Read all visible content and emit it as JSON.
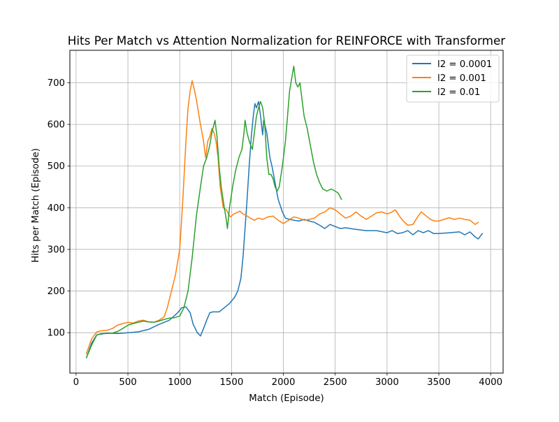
{
  "chart_data": {
    "type": "line",
    "title": "Hits Per Match vs Attention Normalization for REINFORCE with Transformer",
    "xlabel": "Match (Episode)",
    "ylabel": "Hits per Match (Episode)",
    "xlim": [
      -60,
      4120
    ],
    "ylim": [
      3,
      778
    ],
    "xticks": [
      0,
      500,
      1000,
      1500,
      2000,
      2500,
      3000,
      3500,
      4000
    ],
    "yticks": [
      100,
      200,
      300,
      400,
      500,
      600,
      700
    ],
    "grid": true,
    "legend_position": "upper right",
    "series": [
      {
        "name": "l2 = 0.0001",
        "color": "#1f77b4",
        "points": [
          [
            100,
            40
          ],
          [
            150,
            75
          ],
          [
            200,
            95
          ],
          [
            300,
            99
          ],
          [
            400,
            98
          ],
          [
            500,
            100
          ],
          [
            600,
            102
          ],
          [
            700,
            108
          ],
          [
            800,
            120
          ],
          [
            900,
            130
          ],
          [
            980,
            148
          ],
          [
            1020,
            160
          ],
          [
            1060,
            162
          ],
          [
            1100,
            148
          ],
          [
            1130,
            120
          ],
          [
            1170,
            100
          ],
          [
            1200,
            92
          ],
          [
            1230,
            110
          ],
          [
            1260,
            130
          ],
          [
            1290,
            148
          ],
          [
            1320,
            150
          ],
          [
            1380,
            150
          ],
          [
            1430,
            160
          ],
          [
            1480,
            170
          ],
          [
            1530,
            185
          ],
          [
            1560,
            200
          ],
          [
            1590,
            230
          ],
          [
            1610,
            280
          ],
          [
            1630,
            350
          ],
          [
            1650,
            420
          ],
          [
            1670,
            500
          ],
          [
            1690,
            570
          ],
          [
            1710,
            620
          ],
          [
            1725,
            650
          ],
          [
            1740,
            640
          ],
          [
            1760,
            655
          ],
          [
            1780,
            620
          ],
          [
            1800,
            575
          ],
          [
            1810,
            610
          ],
          [
            1840,
            580
          ],
          [
            1870,
            520
          ],
          [
            1890,
            500
          ],
          [
            1920,
            460
          ],
          [
            1950,
            420
          ],
          [
            1990,
            390
          ],
          [
            2020,
            375
          ],
          [
            2060,
            372
          ],
          [
            2100,
            370
          ],
          [
            2150,
            368
          ],
          [
            2200,
            372
          ],
          [
            2250,
            368
          ],
          [
            2300,
            365
          ],
          [
            2350,
            358
          ],
          [
            2400,
            350
          ],
          [
            2450,
            360
          ],
          [
            2500,
            355
          ],
          [
            2550,
            350
          ],
          [
            2600,
            352
          ],
          [
            2700,
            348
          ],
          [
            2800,
            345
          ],
          [
            2900,
            345
          ],
          [
            3000,
            340
          ],
          [
            3050,
            345
          ],
          [
            3100,
            338
          ],
          [
            3150,
            340
          ],
          [
            3200,
            345
          ],
          [
            3250,
            335
          ],
          [
            3300,
            345
          ],
          [
            3350,
            340
          ],
          [
            3400,
            345
          ],
          [
            3450,
            338
          ],
          [
            3500,
            338
          ],
          [
            3600,
            340
          ],
          [
            3700,
            342
          ],
          [
            3750,
            335
          ],
          [
            3800,
            342
          ],
          [
            3850,
            330
          ],
          [
            3880,
            325
          ],
          [
            3920,
            338
          ]
        ]
      },
      {
        "name": "l2 = 0.001",
        "color": "#ff7f0e",
        "points": [
          [
            100,
            50
          ],
          [
            150,
            85
          ],
          [
            200,
            102
          ],
          [
            250,
            105
          ],
          [
            300,
            106
          ],
          [
            350,
            110
          ],
          [
            400,
            118
          ],
          [
            450,
            122
          ],
          [
            500,
            125
          ],
          [
            550,
            123
          ],
          [
            600,
            128
          ],
          [
            650,
            130
          ],
          [
            700,
            126
          ],
          [
            750,
            125
          ],
          [
            800,
            130
          ],
          [
            850,
            138
          ],
          [
            880,
            160
          ],
          [
            920,
            200
          ],
          [
            960,
            240
          ],
          [
            1000,
            300
          ],
          [
            1030,
            420
          ],
          [
            1060,
            560
          ],
          [
            1080,
            640
          ],
          [
            1100,
            680
          ],
          [
            1120,
            705
          ],
          [
            1140,
            685
          ],
          [
            1160,
            660
          ],
          [
            1180,
            630
          ],
          [
            1200,
            600
          ],
          [
            1230,
            560
          ],
          [
            1250,
            520
          ],
          [
            1270,
            560
          ],
          [
            1290,
            570
          ],
          [
            1310,
            590
          ],
          [
            1330,
            580
          ],
          [
            1350,
            560
          ],
          [
            1370,
            520
          ],
          [
            1390,
            450
          ],
          [
            1420,
            400
          ],
          [
            1450,
            395
          ],
          [
            1470,
            385
          ],
          [
            1490,
            378
          ],
          [
            1520,
            385
          ],
          [
            1550,
            388
          ],
          [
            1580,
            392
          ],
          [
            1610,
            385
          ],
          [
            1640,
            382
          ],
          [
            1680,
            375
          ],
          [
            1720,
            370
          ],
          [
            1760,
            375
          ],
          [
            1800,
            372
          ],
          [
            1850,
            378
          ],
          [
            1900,
            380
          ],
          [
            1950,
            370
          ],
          [
            2000,
            362
          ],
          [
            2050,
            370
          ],
          [
            2100,
            378
          ],
          [
            2150,
            375
          ],
          [
            2200,
            370
          ],
          [
            2250,
            372
          ],
          [
            2300,
            375
          ],
          [
            2350,
            385
          ],
          [
            2400,
            390
          ],
          [
            2450,
            400
          ],
          [
            2500,
            395
          ],
          [
            2550,
            385
          ],
          [
            2600,
            375
          ],
          [
            2650,
            380
          ],
          [
            2700,
            390
          ],
          [
            2750,
            380
          ],
          [
            2800,
            372
          ],
          [
            2850,
            380
          ],
          [
            2900,
            388
          ],
          [
            2950,
            390
          ],
          [
            3000,
            385
          ],
          [
            3050,
            390
          ],
          [
            3080,
            395
          ],
          [
            3120,
            380
          ],
          [
            3150,
            370
          ],
          [
            3200,
            358
          ],
          [
            3250,
            360
          ],
          [
            3300,
            380
          ],
          [
            3330,
            390
          ],
          [
            3380,
            380
          ],
          [
            3420,
            372
          ],
          [
            3460,
            368
          ],
          [
            3500,
            368
          ],
          [
            3550,
            372
          ],
          [
            3600,
            376
          ],
          [
            3650,
            372
          ],
          [
            3700,
            375
          ],
          [
            3750,
            372
          ],
          [
            3800,
            370
          ],
          [
            3850,
            360
          ],
          [
            3880,
            365
          ]
        ]
      },
      {
        "name": "l2 = 0.01",
        "color": "#2ca02c",
        "points": [
          [
            100,
            40
          ],
          [
            150,
            70
          ],
          [
            200,
            95
          ],
          [
            250,
            98
          ],
          [
            300,
            98
          ],
          [
            350,
            99
          ],
          [
            400,
            103
          ],
          [
            450,
            110
          ],
          [
            500,
            118
          ],
          [
            550,
            122
          ],
          [
            600,
            125
          ],
          [
            650,
            128
          ],
          [
            700,
            126
          ],
          [
            750,
            125
          ],
          [
            800,
            128
          ],
          [
            850,
            132
          ],
          [
            900,
            135
          ],
          [
            950,
            136
          ],
          [
            1000,
            140
          ],
          [
            1040,
            160
          ],
          [
            1080,
            200
          ],
          [
            1120,
            280
          ],
          [
            1160,
            380
          ],
          [
            1200,
            450
          ],
          [
            1230,
            500
          ],
          [
            1260,
            520
          ],
          [
            1290,
            550
          ],
          [
            1310,
            580
          ],
          [
            1340,
            610
          ],
          [
            1360,
            570
          ],
          [
            1380,
            500
          ],
          [
            1400,
            450
          ],
          [
            1430,
            400
          ],
          [
            1450,
            370
          ],
          [
            1460,
            350
          ],
          [
            1480,
            400
          ],
          [
            1510,
            450
          ],
          [
            1540,
            490
          ],
          [
            1570,
            520
          ],
          [
            1600,
            540
          ],
          [
            1620,
            580
          ],
          [
            1630,
            610
          ],
          [
            1650,
            580
          ],
          [
            1670,
            560
          ],
          [
            1700,
            540
          ],
          [
            1720,
            580
          ],
          [
            1740,
            620
          ],
          [
            1760,
            640
          ],
          [
            1780,
            655
          ],
          [
            1800,
            640
          ],
          [
            1820,
            600
          ],
          [
            1840,
            520
          ],
          [
            1860,
            480
          ],
          [
            1880,
            480
          ],
          [
            1900,
            470
          ],
          [
            1920,
            450
          ],
          [
            1940,
            440
          ],
          [
            1960,
            450
          ],
          [
            1990,
            500
          ],
          [
            2020,
            560
          ],
          [
            2040,
            620
          ],
          [
            2060,
            680
          ],
          [
            2080,
            710
          ],
          [
            2100,
            740
          ],
          [
            2120,
            700
          ],
          [
            2140,
            690
          ],
          [
            2160,
            700
          ],
          [
            2180,
            660
          ],
          [
            2200,
            620
          ],
          [
            2230,
            590
          ],
          [
            2260,
            550
          ],
          [
            2290,
            510
          ],
          [
            2320,
            480
          ],
          [
            2350,
            460
          ],
          [
            2380,
            445
          ],
          [
            2420,
            440
          ],
          [
            2460,
            445
          ],
          [
            2500,
            440
          ],
          [
            2530,
            435
          ],
          [
            2560,
            420
          ]
        ]
      }
    ]
  }
}
